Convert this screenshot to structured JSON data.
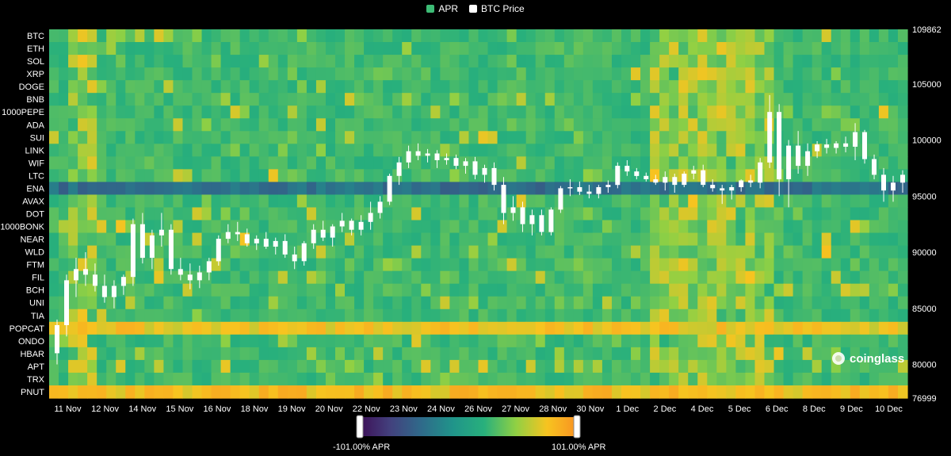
{
  "legend": {
    "apr_label": "APR",
    "apr_color": "#3dbb75",
    "btc_label": "BTC Price",
    "btc_color": "#ffffff"
  },
  "watermark": "coinglass",
  "color_scale": {
    "min_label": "-101.00% APR",
    "max_label": "101.00% APR",
    "stops": [
      "#3d0d55",
      "#43407d",
      "#2f6a8a",
      "#20948a",
      "#28b07c",
      "#8fd044",
      "#f7c420",
      "#f99022"
    ]
  },
  "chart_data": {
    "type": "heatmap",
    "rows": [
      "BTC",
      "ETH",
      "SOL",
      "XRP",
      "DOGE",
      "BNB",
      "1000PEPE",
      "ADA",
      "SUI",
      "LINK",
      "WIF",
      "LTC",
      "ENA",
      "AVAX",
      "DOT",
      "1000BONK",
      "NEAR",
      "WLD",
      "FTM",
      "FIL",
      "BCH",
      "UNI",
      "TIA",
      "POPCAT",
      "ONDO",
      "HBAR",
      "APT",
      "TRX",
      "PNUT"
    ],
    "x_tick_labels": [
      "11 Nov",
      "12 Nov",
      "14 Nov",
      "15 Nov",
      "16 Nov",
      "18 Nov",
      "19 Nov",
      "20 Nov",
      "22 Nov",
      "23 Nov",
      "24 Nov",
      "26 Nov",
      "27 Nov",
      "28 Nov",
      "30 Nov",
      "1 Dec",
      "2 Dec",
      "4 Dec",
      "5 Dec",
      "6 Dec",
      "8 Dec",
      "9 Dec",
      "10 Dec"
    ],
    "y2_axis": {
      "label": "BTC Price",
      "ticks": [
        109862,
        105000,
        100000,
        95000,
        90000,
        85000,
        80000,
        76999
      ],
      "range": [
        76999,
        109862
      ]
    },
    "apr_range": [
      -101,
      101
    ],
    "time_slots": 90,
    "highlights": [
      {
        "row": "ENA",
        "value": -40,
        "note": "row-wide negative APR"
      },
      {
        "row": "POPCAT",
        "value": 70
      },
      {
        "row": "PNUT",
        "value": 75
      }
    ],
    "btc_candles": [
      [
        81000,
        84000,
        80000,
        83500
      ],
      [
        83500,
        88000,
        82500,
        87500
      ],
      [
        87500,
        89500,
        86000,
        88500
      ],
      [
        88500,
        90000,
        87000,
        88000
      ],
      [
        88000,
        89000,
        86500,
        87000
      ],
      [
        87000,
        88000,
        85500,
        86000
      ],
      [
        86000,
        87500,
        85000,
        87000
      ],
      [
        87000,
        88000,
        86200,
        87800
      ],
      [
        87800,
        93000,
        87000,
        92500
      ],
      [
        92500,
        93500,
        89000,
        89500
      ],
      [
        89500,
        92000,
        88500,
        91500
      ],
      [
        91500,
        93500,
        90500,
        92000
      ],
      [
        92000,
        92500,
        88000,
        88500
      ],
      [
        88500,
        89500,
        87500,
        88000
      ],
      [
        88000,
        89000,
        86700,
        87500
      ],
      [
        87500,
        88800,
        86800,
        88200
      ],
      [
        88200,
        89500,
        87500,
        89200
      ],
      [
        89200,
        91500,
        88800,
        91200
      ],
      [
        91200,
        92500,
        90800,
        91800
      ],
      [
        91800,
        92700,
        91000,
        91600
      ],
      [
        91600,
        92100,
        90500,
        90800
      ],
      [
        90800,
        91500,
        90200,
        91200
      ],
      [
        91200,
        91800,
        90300,
        90500
      ],
      [
        90500,
        91300,
        89800,
        91000
      ],
      [
        91000,
        91600,
        89500,
        89800
      ],
      [
        89800,
        90500,
        88500,
        89200
      ],
      [
        89200,
        91000,
        88800,
        90800
      ],
      [
        90800,
        92500,
        90300,
        92000
      ],
      [
        92000,
        92800,
        91000,
        91300
      ],
      [
        91300,
        92500,
        90500,
        92300
      ],
      [
        92300,
        93500,
        91800,
        92800
      ],
      [
        92800,
        93000,
        91500,
        92000
      ],
      [
        92000,
        93300,
        91500,
        92700
      ],
      [
        92700,
        94500,
        92000,
        93500
      ],
      [
        93500,
        95000,
        93000,
        94500
      ],
      [
        94500,
        97000,
        94200,
        96800
      ],
      [
        96800,
        98500,
        96000,
        98000
      ],
      [
        98000,
        99500,
        97500,
        99000
      ],
      [
        99000,
        99700,
        98200,
        98600
      ],
      [
        98600,
        99200,
        98000,
        98800
      ],
      [
        98800,
        99100,
        97500,
        98200
      ],
      [
        98200,
        98800,
        97800,
        98400
      ],
      [
        98400,
        98700,
        97400,
        97700
      ],
      [
        97700,
        98400,
        97000,
        98100
      ],
      [
        98100,
        98500,
        96500,
        96900
      ],
      [
        96900,
        97800,
        96200,
        97500
      ],
      [
        97500,
        98000,
        95500,
        96000
      ],
      [
        96000,
        96700,
        92500,
        93500
      ],
      [
        93500,
        95000,
        92800,
        94000
      ],
      [
        94000,
        94500,
        91800,
        92500
      ],
      [
        92500,
        93800,
        91500,
        93300
      ],
      [
        93300,
        93800,
        91500,
        91800
      ],
      [
        91800,
        94000,
        91500,
        93800
      ],
      [
        93800,
        95900,
        93500,
        95700
      ],
      [
        95700,
        96500,
        95000,
        95800
      ],
      [
        95800,
        96300,
        95100,
        95400
      ],
      [
        95400,
        96000,
        94800,
        95200
      ],
      [
        95200,
        96000,
        94800,
        95800
      ],
      [
        95800,
        96400,
        95300,
        96000
      ],
      [
        96000,
        98000,
        95700,
        97700
      ],
      [
        97700,
        98200,
        96800,
        97200
      ],
      [
        97200,
        97500,
        96500,
        96800
      ],
      [
        96800,
        97100,
        96300,
        96500
      ],
      [
        96500,
        96900,
        96000,
        96200
      ],
      [
        96200,
        97200,
        95500,
        96700
      ],
      [
        96700,
        97000,
        95300,
        96000
      ],
      [
        96000,
        97200,
        95800,
        97000
      ],
      [
        97000,
        97700,
        96500,
        97300
      ],
      [
        97300,
        97800,
        95800,
        96000
      ],
      [
        96000,
        96500,
        95400,
        95700
      ],
      [
        95700,
        96000,
        94300,
        95500
      ],
      [
        95500,
        96000,
        94700,
        95800
      ],
      [
        95800,
        96500,
        95400,
        96400
      ],
      [
        96400,
        96900,
        95800,
        96200
      ],
      [
        96200,
        98400,
        95700,
        98000
      ],
      [
        98000,
        104000,
        97500,
        102500
      ],
      [
        102500,
        103200,
        95000,
        96500
      ],
      [
        96500,
        100000,
        94000,
        99500
      ],
      [
        99500,
        100800,
        97000,
        97700
      ],
      [
        97700,
        99700,
        96800,
        99000
      ],
      [
        99000,
        99900,
        98400,
        99600
      ],
      [
        99600,
        100100,
        98800,
        99300
      ],
      [
        99300,
        99900,
        98800,
        99700
      ],
      [
        99700,
        100300,
        98900,
        99400
      ],
      [
        99400,
        101500,
        98200,
        100700
      ],
      [
        100700,
        100900,
        97900,
        98300
      ],
      [
        98300,
        98700,
        96500,
        96900
      ],
      [
        96900,
        97500,
        94500,
        95500
      ],
      [
        95500,
        96800,
        94500,
        96200
      ],
      [
        96200,
        97300,
        95300,
        96900
      ]
    ]
  }
}
